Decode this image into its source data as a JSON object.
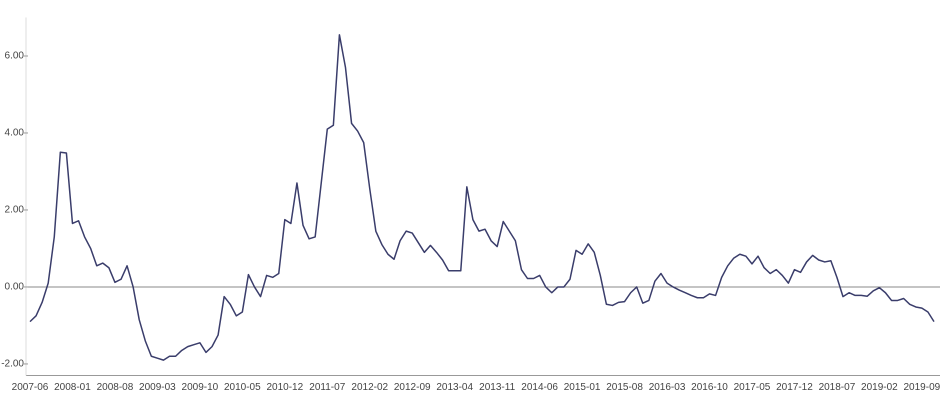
{
  "chart_data": {
    "type": "line",
    "categories": [
      "2007-06",
      null,
      null,
      null,
      null,
      null,
      null,
      "2008-01",
      null,
      null,
      null,
      null,
      null,
      null,
      "2008-08",
      null,
      null,
      null,
      null,
      null,
      null,
      "2009-03",
      null,
      null,
      null,
      null,
      null,
      null,
      "2009-10",
      null,
      null,
      null,
      null,
      null,
      null,
      "2010-05",
      null,
      null,
      null,
      null,
      null,
      null,
      "2010-12",
      null,
      null,
      null,
      null,
      null,
      null,
      "2011-07",
      null,
      null,
      null,
      null,
      null,
      null,
      "2012-02",
      null,
      null,
      null,
      null,
      null,
      null,
      "2012-09",
      null,
      null,
      null,
      null,
      null,
      null,
      "2013-04",
      null,
      null,
      null,
      null,
      null,
      null,
      "2013-11",
      null,
      null,
      null,
      null,
      null,
      null,
      "2014-06",
      null,
      null,
      null,
      null,
      null,
      null,
      "2015-01",
      null,
      null,
      null,
      null,
      null,
      null,
      "2015-08",
      null,
      null,
      null,
      null,
      null,
      null,
      "2016-03",
      null,
      null,
      null,
      null,
      null,
      null,
      "2016-10",
      null,
      null,
      null,
      null,
      null,
      null,
      "2017-05",
      null,
      null,
      null,
      null,
      null,
      null,
      "2017-12",
      null,
      null,
      null,
      null,
      null,
      null,
      "2018-07",
      null,
      null,
      null,
      null,
      null,
      null,
      "2019-02",
      null,
      null,
      null,
      null,
      null,
      null,
      "2019-09",
      null,
      null
    ],
    "series": [
      {
        "color": "#3a3d6b",
        "values": [
          -0.9,
          -0.75,
          -0.4,
          0.1,
          1.3,
          3.5,
          3.48,
          1.65,
          1.72,
          1.3,
          1.0,
          0.55,
          0.62,
          0.5,
          0.12,
          0.2,
          0.55,
          0.0,
          -0.85,
          -1.4,
          -1.8,
          -1.85,
          -1.9,
          -1.8,
          -1.8,
          -1.65,
          -1.55,
          -1.5,
          -1.45,
          -1.7,
          -1.55,
          -1.25,
          -0.25,
          -0.45,
          -0.75,
          -0.65,
          0.32,
          0.0,
          -0.25,
          0.3,
          0.25,
          0.35,
          1.75,
          1.65,
          2.7,
          1.6,
          1.25,
          1.3,
          2.7,
          4.1,
          4.2,
          6.55,
          5.7,
          4.25,
          4.05,
          3.75,
          2.55,
          1.45,
          1.1,
          0.85,
          0.72,
          1.2,
          1.45,
          1.4,
          1.15,
          0.9,
          1.08,
          0.9,
          0.7,
          0.42,
          0.42,
          0.42,
          2.6,
          1.75,
          1.45,
          1.5,
          1.2,
          1.05,
          1.7,
          1.45,
          1.2,
          0.45,
          0.22,
          0.22,
          0.3,
          0.0,
          -0.15,
          0.0,
          0.0,
          0.2,
          0.95,
          0.85,
          1.12,
          0.9,
          0.3,
          -0.45,
          -0.48,
          -0.4,
          -0.38,
          -0.15,
          0.0,
          -0.42,
          -0.35,
          0.15,
          0.35,
          0.1,
          0.0,
          -0.08,
          -0.15,
          -0.22,
          -0.28,
          -0.28,
          -0.18,
          -0.22,
          0.25,
          0.55,
          0.75,
          0.85,
          0.8,
          0.6,
          0.8,
          0.5,
          0.35,
          0.45,
          0.3,
          0.1,
          0.45,
          0.38,
          0.65,
          0.82,
          0.7,
          0.65,
          0.68,
          0.25,
          -0.25,
          -0.15,
          -0.22,
          -0.22,
          -0.24,
          -0.1,
          -0.02,
          -0.15,
          -0.35,
          -0.35,
          -0.3,
          -0.45,
          -0.52,
          -0.55,
          -0.65,
          -0.9
        ]
      }
    ],
    "ylim": [
      -2.3,
      7.0
    ],
    "yticks": [
      {
        "value": -2,
        "label": "-2.00"
      },
      {
        "value": 0,
        "label": "0.00"
      },
      {
        "value": 2,
        "label": "2.00"
      },
      {
        "value": 4,
        "label": "4.00"
      },
      {
        "value": 6,
        "label": "6.00"
      }
    ],
    "grid": false
  }
}
